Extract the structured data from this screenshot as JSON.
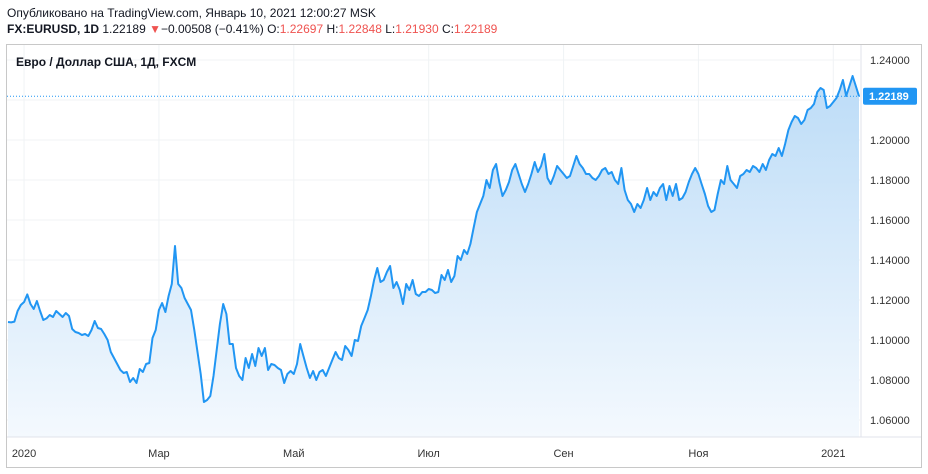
{
  "header": {
    "published": "Опубликовано на TradingView.com, Январь 10, 2021 12:00:27 MSK",
    "symbol": "FX:EURUSD, 1D",
    "last": "1.22189",
    "arrow": "▼",
    "change": "−0.00508 (−0.41%)",
    "o_label": "O:",
    "o_value": "1.22697",
    "h_label": "H:",
    "h_value": "1.22848",
    "l_label": "L:",
    "l_value": "1.21930",
    "c_label": "C:",
    "c_value": "1.22189"
  },
  "chart_data": {
    "type": "area",
    "title": "Евро / Доллар США, 1Д, FXCM",
    "xlabel": "",
    "ylabel": "",
    "ylim": [
      1.0515,
      1.2475
    ],
    "y_ticks": [
      1.06,
      1.08,
      1.1,
      1.12,
      1.14,
      1.16,
      1.18,
      1.2,
      1.22,
      1.24
    ],
    "y_tick_labels": [
      "1.06000",
      "1.08000",
      "1.10000",
      "1.12000",
      "1.14000",
      "1.16000",
      "1.18000",
      "1.20000",
      "1.22000",
      "1.24000"
    ],
    "x_tick_labels": [
      "2020",
      "Мар",
      "Май",
      "Июл",
      "Сен",
      "Ноя",
      "2021"
    ],
    "x_tick_index": [
      5,
      47,
      89,
      131,
      173,
      215,
      257
    ],
    "last_value_label": "1.22189",
    "grid": true,
    "colors": {
      "line": "#2196f3",
      "fill_top": "#bcdcf7",
      "fill_bottom": "#f4f9fe",
      "last_badge": "#2196f3",
      "grid": "#f0f3f5"
    },
    "values": [
      1.109,
      1.1088,
      1.1092,
      1.1145,
      1.1175,
      1.119,
      1.1228,
      1.118,
      1.1155,
      1.1195,
      1.1145,
      1.11,
      1.1108,
      1.1125,
      1.1115,
      1.1145,
      1.113,
      1.1115,
      1.1135,
      1.112,
      1.1055,
      1.104,
      1.1035,
      1.1025,
      1.103,
      1.102,
      1.105,
      1.1095,
      1.106,
      1.1055,
      1.103,
      1.1,
      1.094,
      1.091,
      1.088,
      1.085,
      1.0835,
      1.084,
      1.079,
      1.081,
      1.0785,
      1.0855,
      1.084,
      1.088,
      1.0885,
      1.101,
      1.105,
      1.115,
      1.1185,
      1.114,
      1.122,
      1.128,
      1.147,
      1.128,
      1.126,
      1.121,
      1.118,
      1.115,
      1.105,
      1.094,
      1.083,
      1.069,
      1.07,
      1.072,
      1.082,
      1.095,
      1.108,
      1.118,
      1.113,
      1.098,
      1.098,
      1.086,
      1.082,
      1.08,
      1.091,
      1.086,
      1.093,
      1.087,
      1.096,
      1.092,
      1.096,
      1.085,
      1.088,
      1.0875,
      1.086,
      1.085,
      1.0785,
      1.083,
      1.0845,
      1.083,
      1.088,
      1.098,
      1.092,
      1.086,
      1.081,
      1.0845,
      1.08,
      1.084,
      1.085,
      1.082,
      1.086,
      1.09,
      1.094,
      1.091,
      1.09,
      1.097,
      1.095,
      1.092,
      1.1,
      1.0995,
      1.107,
      1.111,
      1.115,
      1.122,
      1.13,
      1.136,
      1.129,
      1.13,
      1.134,
      1.137,
      1.126,
      1.129,
      1.125,
      1.118,
      1.128,
      1.125,
      1.13,
      1.123,
      1.122,
      1.124,
      1.124,
      1.1255,
      1.125,
      1.1235,
      1.124,
      1.1325,
      1.13,
      1.135,
      1.129,
      1.132,
      1.142,
      1.14,
      1.145,
      1.143,
      1.148,
      1.156,
      1.164,
      1.168,
      1.172,
      1.18,
      1.176,
      1.185,
      1.188,
      1.179,
      1.172,
      1.175,
      1.179,
      1.185,
      1.188,
      1.183,
      1.178,
      1.174,
      1.178,
      1.183,
      1.189,
      1.184,
      1.187,
      1.193,
      1.181,
      1.178,
      1.182,
      1.187,
      1.185,
      1.183,
      1.181,
      1.182,
      1.187,
      1.192,
      1.188,
      1.186,
      1.183,
      1.183,
      1.181,
      1.18,
      1.182,
      1.185,
      1.186,
      1.183,
      1.184,
      1.18,
      1.178,
      1.186,
      1.175,
      1.17,
      1.168,
      1.164,
      1.168,
      1.166,
      1.17,
      1.176,
      1.17,
      1.174,
      1.172,
      1.176,
      1.178,
      1.17,
      1.177,
      1.172,
      1.178,
      1.17,
      1.171,
      1.174,
      1.179,
      1.183,
      1.186,
      1.183,
      1.178,
      1.173,
      1.167,
      1.164,
      1.165,
      1.173,
      1.18,
      1.178,
      1.187,
      1.18,
      1.178,
      1.176,
      1.182,
      1.183,
      1.185,
      1.184,
      1.187,
      1.186,
      1.184,
      1.188,
      1.185,
      1.19,
      1.193,
      1.192,
      1.196,
      1.192,
      1.198,
      1.205,
      1.209,
      1.212,
      1.211,
      1.208,
      1.21,
      1.215,
      1.216,
      1.218,
      1.224,
      1.226,
      1.225,
      1.216,
      1.217,
      1.219,
      1.221,
      1.225,
      1.23,
      1.222,
      1.227,
      1.232,
      1.227,
      1.2219
    ]
  }
}
